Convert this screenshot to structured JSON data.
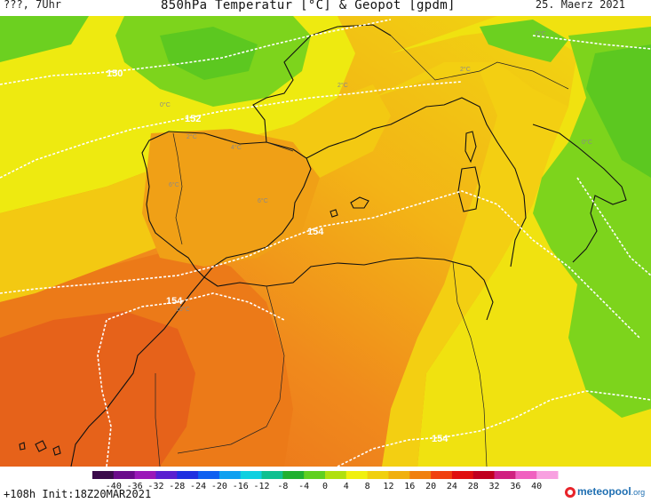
{
  "header": {
    "left": "???, 7Uhr",
    "title": "850hPa Temperatur [°C] & Geopot [gpdm]",
    "date": "25. Maerz 2021"
  },
  "footer": {
    "run": "+108h Init:18Z20MAR2021",
    "logo_main": "meteopool",
    "logo_tld": ".org"
  },
  "colorbar": {
    "labels": [
      "-40",
      "-36",
      "-32",
      "-28",
      "-24",
      "-20",
      "-16",
      "-12",
      "-8",
      "-4",
      "0",
      "4",
      "8",
      "12",
      "16",
      "20",
      "24",
      "28",
      "32",
      "36",
      "40"
    ],
    "colors": [
      "#3a0a4a",
      "#6a0a8a",
      "#9a18b8",
      "#5a20d0",
      "#2030e0",
      "#1060f0",
      "#10a0f0",
      "#10d0e0",
      "#10c090",
      "#20b030",
      "#60d020",
      "#b0e010",
      "#f0f010",
      "#f0d010",
      "#f0b010",
      "#f08010",
      "#f04010",
      "#e01010",
      "#c00020",
      "#d02080",
      "#f060c0",
      "#f8a0e0"
    ]
  },
  "map": {
    "geopotential_labels": [
      "150",
      "152",
      "154",
      "154",
      "154"
    ],
    "temperature_labels": [
      "0°C",
      "2°C",
      "2°C",
      "4°C",
      "6°C",
      "6°C",
      "10°C",
      "0°C",
      "0°C",
      "2°C"
    ]
  }
}
